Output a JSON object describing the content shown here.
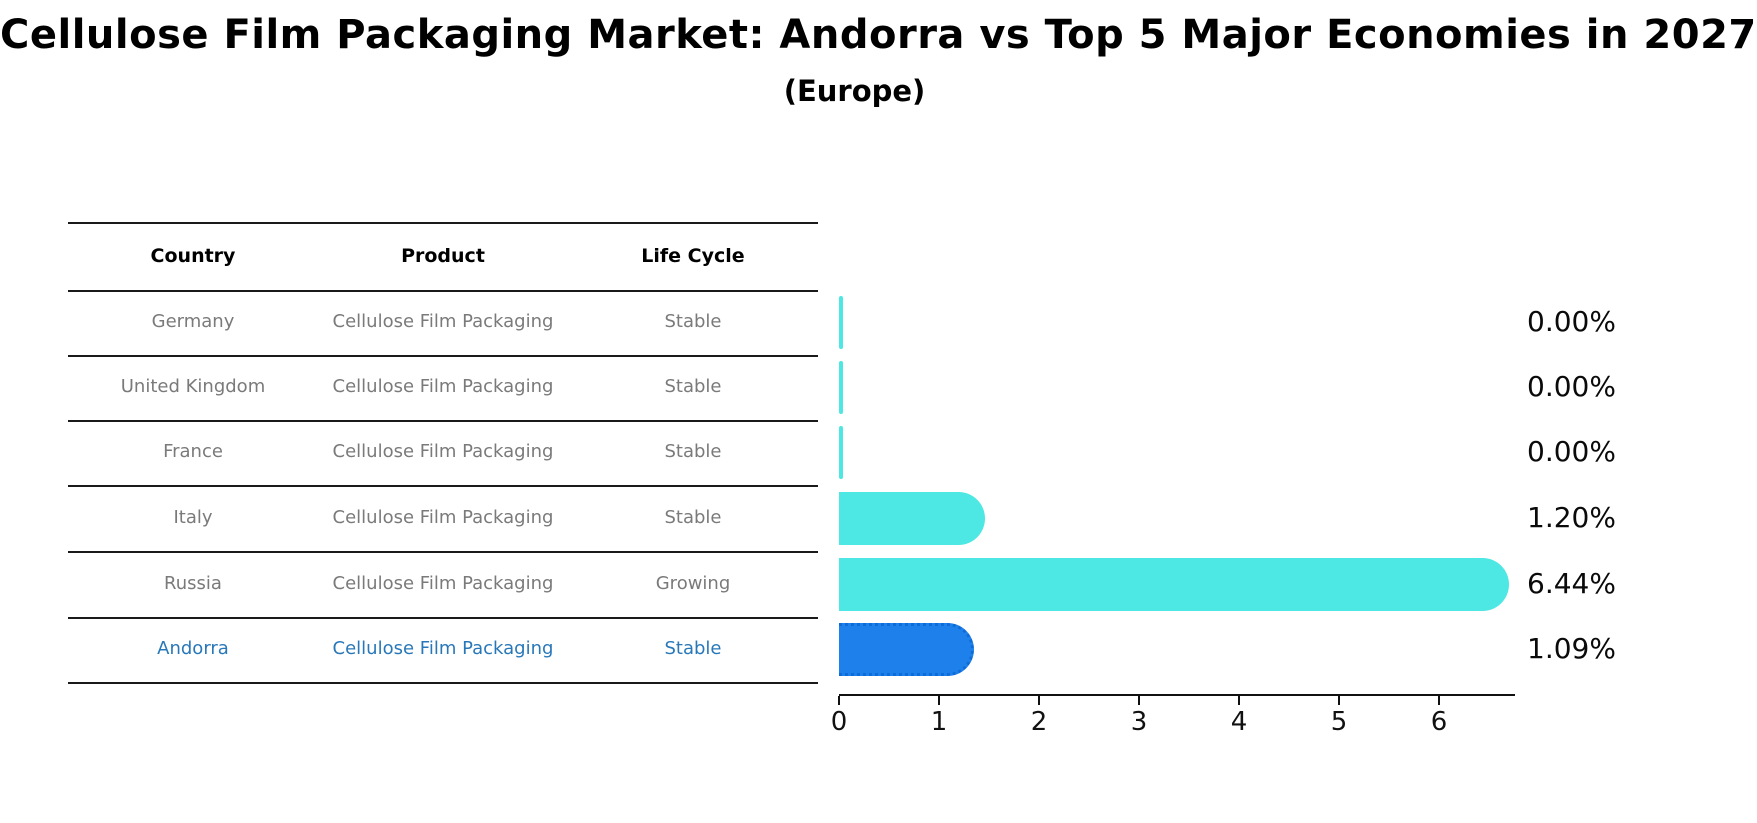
{
  "title": "Cellulose Film Packaging Market: Andorra vs Top 5 Major Economies in 2027",
  "subtitle": "(Europe)",
  "table": {
    "headers": [
      "Country",
      "Product",
      "Life Cycle"
    ],
    "rows": [
      {
        "country": "Germany",
        "product": "Cellulose Film Packaging",
        "life_cycle": "Stable",
        "share_label": "0.00%"
      },
      {
        "country": "United Kingdom",
        "product": "Cellulose Film Packaging",
        "life_cycle": "Stable",
        "share_label": "0.00%"
      },
      {
        "country": "France",
        "product": "Cellulose Film Packaging",
        "life_cycle": "Stable",
        "share_label": "0.00%"
      },
      {
        "country": "Italy",
        "product": "Cellulose Film Packaging",
        "life_cycle": "Stable",
        "share_label": "1.20%"
      },
      {
        "country": "Russia",
        "product": "Cellulose Film Packaging",
        "life_cycle": "Growing",
        "share_label": "6.44%"
      },
      {
        "country": "Andorra",
        "product": "Cellulose Film Packaging",
        "life_cycle": "Stable",
        "share_label": "1.09%"
      }
    ]
  },
  "chart_data": {
    "type": "bar",
    "orientation": "horizontal",
    "title": "Cellulose Film Packaging Market: Andorra vs Top 5 Major Economies in 2027",
    "subtitle": "(Europe)",
    "categories": [
      "Germany",
      "United Kingdom",
      "France",
      "Italy",
      "Russia",
      "Andorra"
    ],
    "values": [
      0.0,
      0.0,
      0.0,
      1.2,
      6.44,
      1.09
    ],
    "value_labels": [
      "0.00%",
      "0.00%",
      "0.00%",
      "1.20%",
      "6.44%",
      "1.09%"
    ],
    "xlabel": "",
    "ylabel": "",
    "xlim": [
      0,
      6.76
    ],
    "x_ticks": [
      "0",
      "1",
      "2",
      "3",
      "4",
      "5",
      "6"
    ],
    "grid": false,
    "legend": false,
    "bar_color": "#4DE7E4",
    "highlight_color": "#1E80EA",
    "highlight_index": 5,
    "highlight_text_color": "#2878b9"
  }
}
